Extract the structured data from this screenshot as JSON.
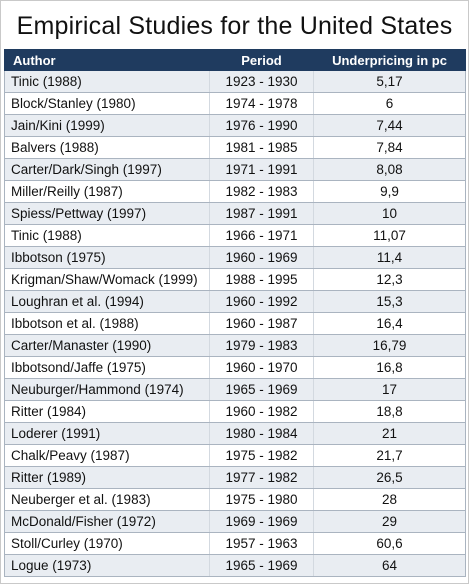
{
  "title": "Empirical Studies for the United States",
  "columns": {
    "author": "Author",
    "period": "Period",
    "underpricing": "Underpricing in pc"
  },
  "rows": [
    {
      "author": "Tinic (1988)",
      "period": "1923  -  1930",
      "underpricing": "5,17"
    },
    {
      "author": "Block/Stanley (1980)",
      "period": "1974  -  1978",
      "underpricing": "6"
    },
    {
      "author": "Jain/Kini (1999)",
      "period": "1976  -  1990",
      "underpricing": "7,44"
    },
    {
      "author": "Balvers (1988)",
      "period": "1981  -  1985",
      "underpricing": "7,84"
    },
    {
      "author": "Carter/Dark/Singh (1997)",
      "period": "1971  -  1991",
      "underpricing": "8,08"
    },
    {
      "author": "Miller/Reilly (1987)",
      "period": "1982  -  1983",
      "underpricing": "9,9"
    },
    {
      "author": "Spiess/Pettway (1997)",
      "period": "1987  -  1991",
      "underpricing": "10"
    },
    {
      "author": "Tinic (1988)",
      "period": "1966  -  1971",
      "underpricing": "11,07"
    },
    {
      "author": "Ibbotson (1975)",
      "period": "1960  -  1969",
      "underpricing": "11,4"
    },
    {
      "author": "Krigman/Shaw/Womack (1999)",
      "period": "1988  -  1995",
      "underpricing": "12,3"
    },
    {
      "author": "Loughran et al. (1994)",
      "period": "1960  -  1992",
      "underpricing": "15,3"
    },
    {
      "author": "Ibbotson et al. (1988)",
      "period": "1960  -  1987",
      "underpricing": "16,4"
    },
    {
      "author": "Carter/Manaster (1990)",
      "period": "1979  -  1983",
      "underpricing": "16,79"
    },
    {
      "author": "Ibbotsond/Jaffe (1975)",
      "period": "1960  -  1970",
      "underpricing": "16,8"
    },
    {
      "author": "Neuburger/Hammond (1974)",
      "period": "1965  -  1969",
      "underpricing": "17"
    },
    {
      "author": "Ritter (1984)",
      "period": "1960  -  1982",
      "underpricing": "18,8"
    },
    {
      "author": "Loderer (1991)",
      "period": "1980  -  1984",
      "underpricing": "21"
    },
    {
      "author": "Chalk/Peavy (1987)",
      "period": "1975  -  1982",
      "underpricing": "21,7"
    },
    {
      "author": "Ritter (1989)",
      "period": "1977  -  1982",
      "underpricing": "26,5"
    },
    {
      "author": "Neuberger et al. (1983)",
      "period": "1975  -  1980",
      "underpricing": "28"
    },
    {
      "author": "McDonald/Fisher (1972)",
      "period": "1969  -  1969",
      "underpricing": "29"
    },
    {
      "author": "Stoll/Curley (1970)",
      "period": "1957  -  1963",
      "underpricing": "60,6"
    },
    {
      "author": "Logue (1973)",
      "period": "1965  -  1969",
      "underpricing": "64"
    }
  ],
  "colors": {
    "header_bg": "#1f3b5f",
    "header_text": "#ffffff",
    "row_alt_bg": "#e9edf2",
    "row_bg": "#ffffff",
    "grid_line": "#aab4c0"
  }
}
